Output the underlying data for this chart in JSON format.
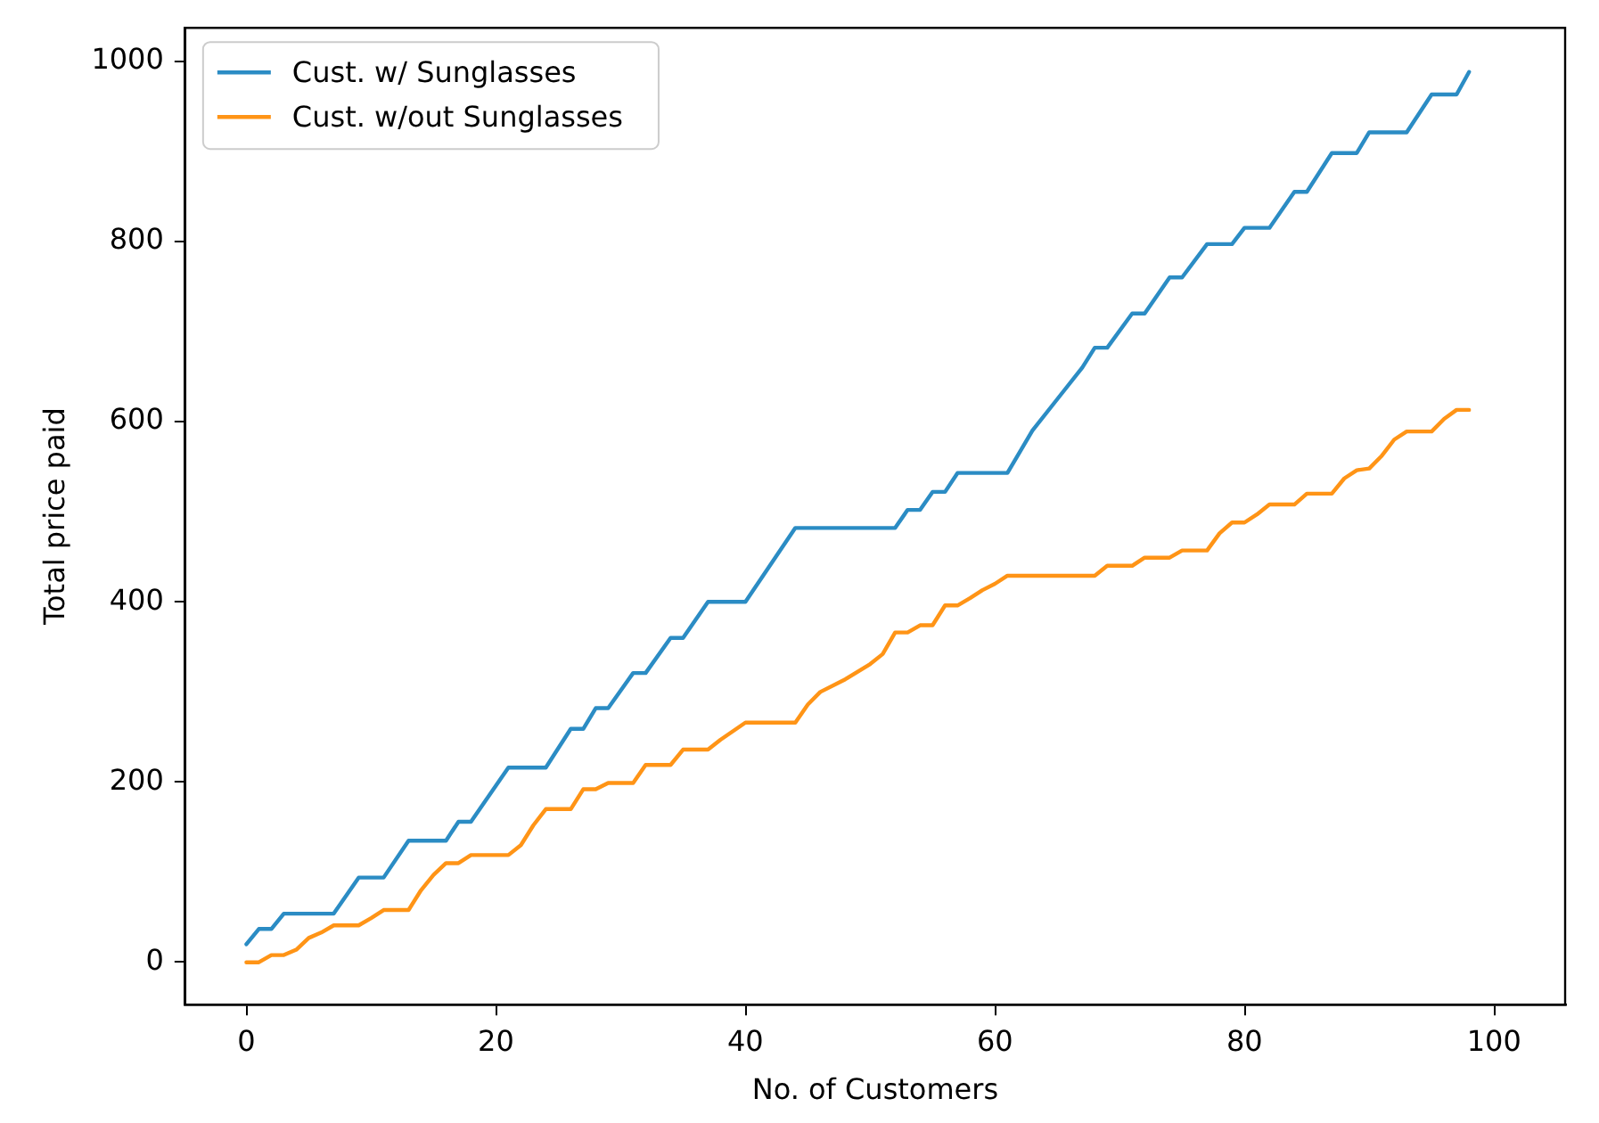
{
  "chart_data": {
    "type": "line",
    "xlabel": "No. of Customers",
    "ylabel": "Total price paid",
    "xlim": [
      -4.9,
      105.7
    ],
    "xticks": [
      0,
      20,
      40,
      60,
      80,
      100
    ],
    "ylim": [
      -47,
      1037
    ],
    "yticks": [
      0,
      200,
      400,
      600,
      800,
      1000
    ],
    "grid": false,
    "legend": "top left",
    "marker": "none",
    "line_style": "solid",
    "series": [
      {
        "name": "Cust. w/ Sunglasses",
        "color": "#2b8cc4",
        "x": [
          0,
          1,
          2,
          3,
          7,
          9,
          11,
          13,
          16,
          17,
          18,
          21,
          24,
          26,
          27,
          28,
          29,
          31,
          32,
          34,
          35,
          37,
          40,
          44,
          52,
          53,
          54,
          55,
          56,
          57,
          61,
          63,
          65,
          67,
          68,
          69,
          71,
          72,
          74,
          75,
          77,
          79,
          80,
          82,
          84,
          85,
          87,
          89,
          90,
          93,
          95,
          97,
          98
        ],
        "values": [
          20,
          37,
          37,
          54,
          54,
          94,
          94,
          135,
          135,
          156,
          156,
          216,
          216,
          259,
          259,
          282,
          282,
          321,
          321,
          360,
          360,
          400,
          400,
          482,
          482,
          502,
          502,
          522,
          522,
          543,
          543,
          590,
          625,
          660,
          682,
          682,
          720,
          720,
          760,
          760,
          797,
          797,
          815,
          815,
          855,
          855,
          898,
          898,
          921,
          921,
          963,
          963,
          988
        ]
      },
      {
        "name": "Cust. w/out Sunglasses",
        "color": "#ff9416",
        "x": [
          0,
          1,
          2,
          3,
          4,
          5,
          6,
          7,
          9,
          10,
          11,
          13,
          14,
          15,
          16,
          17,
          18,
          21,
          22,
          23,
          24,
          26,
          27,
          28,
          29,
          31,
          32,
          34,
          35,
          37,
          38,
          40,
          44,
          45,
          46,
          48,
          50,
          51,
          52,
          53,
          54,
          55,
          56,
          57,
          58,
          59,
          60,
          61,
          68,
          69,
          71,
          72,
          74,
          75,
          77,
          78,
          79,
          80,
          81,
          82,
          84,
          85,
          87,
          88,
          89,
          90,
          91,
          92,
          93,
          95,
          96,
          97,
          98
        ],
        "values": [
          0,
          0,
          8,
          8,
          14,
          27,
          33,
          41,
          41,
          49,
          58,
          58,
          80,
          97,
          110,
          110,
          119,
          119,
          130,
          152,
          170,
          170,
          192,
          192,
          199,
          199,
          219,
          219,
          236,
          236,
          247,
          266,
          266,
          286,
          300,
          314,
          331,
          342,
          366,
          366,
          374,
          374,
          396,
          396,
          404,
          413,
          420,
          429,
          429,
          440,
          440,
          449,
          449,
          457,
          457,
          476,
          488,
          488,
          497,
          508,
          508,
          520,
          520,
          537,
          546,
          548,
          562,
          580,
          589,
          589,
          603,
          613,
          613
        ]
      }
    ]
  }
}
